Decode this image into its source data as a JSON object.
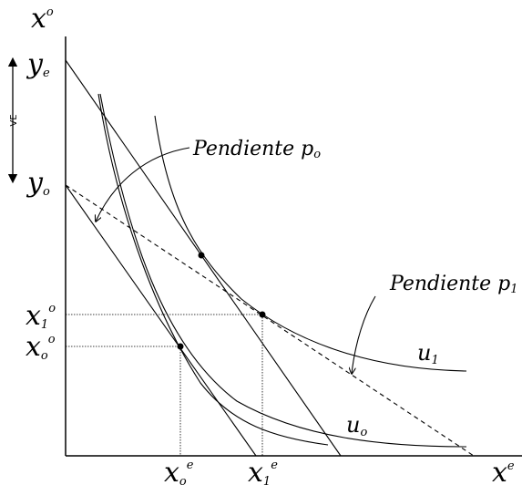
{
  "labels": {
    "y_axis_base": "x",
    "y_axis_sup": "o",
    "x_axis_base": "x",
    "x_axis_sup": "e",
    "ye_base": "y",
    "ye_sub": "e",
    "y0_base": "y",
    "y0_sub": "o",
    "x1o_base": "x",
    "x1o_sub": "1",
    "x1o_sup": "o",
    "x0o_base": "x",
    "x0o_sub": "o",
    "x0o_sup": "o",
    "x0e_base": "x",
    "x0e_sub": "o",
    "x0e_sup": "e",
    "x1e_base": "x",
    "x1e_sub": "1",
    "x1e_sup": "e",
    "u1_base": "u",
    "u1_sub": "1",
    "u0_base": "u",
    "u0_sub": "o",
    "ve": "VE",
    "pend0_text": "Pendiente ",
    "pend0_p": "p",
    "pend0_sub": "o",
    "pend1_text": "Pendiente ",
    "pend1_p": "p",
    "pend1_sub": "1"
  }
}
